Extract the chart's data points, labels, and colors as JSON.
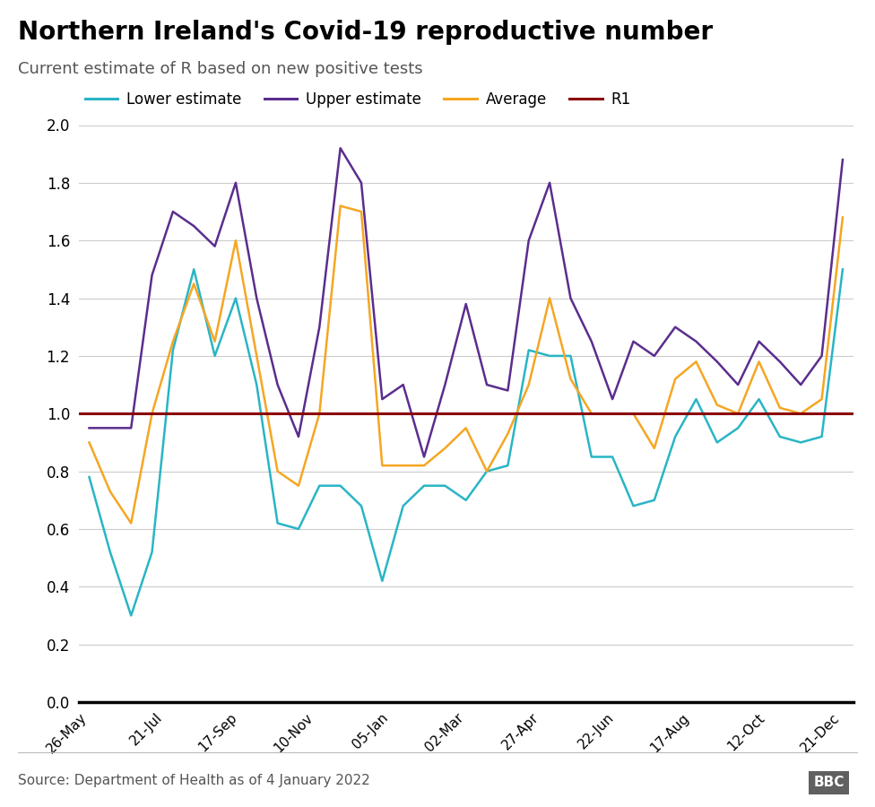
{
  "title": "Northern Ireland's Covid-19 reproductive number",
  "subtitle": "Current estimate of R based on new positive tests",
  "source": "Source: Department of Health as of 4 January 2022",
  "x_labels": [
    "26-May",
    "21-Jul",
    "17-Sep",
    "10-Nov",
    "05-Jan",
    "02-Mar",
    "27-Apr",
    "22-Jun",
    "17-Aug",
    "12-Oct",
    "21-Dec"
  ],
  "lower_color": "#29b5c5",
  "upper_color": "#5b2d8e",
  "average_color": "#f5a623",
  "r1_color": "#8b0000",
  "lower_estimate": [
    0.78,
    0.52,
    0.3,
    0.52,
    1.22,
    1.5,
    1.2,
    1.4,
    1.1,
    0.62,
    0.6,
    0.75,
    0.75,
    0.68,
    0.42,
    0.68,
    0.75,
    0.75,
    0.7,
    0.8,
    0.82,
    1.22,
    1.2,
    1.2,
    0.85,
    0.85,
    0.68,
    0.7,
    0.92,
    1.05,
    0.9,
    0.95,
    1.05,
    0.92,
    0.9,
    0.92,
    1.5
  ],
  "upper_estimate": [
    0.95,
    0.95,
    0.95,
    1.48,
    1.7,
    1.65,
    1.58,
    1.8,
    1.4,
    1.1,
    0.92,
    1.3,
    1.92,
    1.8,
    1.05,
    1.1,
    0.85,
    1.1,
    1.38,
    1.1,
    1.08,
    1.6,
    1.8,
    1.4,
    1.25,
    1.05,
    1.25,
    1.2,
    1.3,
    1.25,
    1.18,
    1.1,
    1.25,
    1.18,
    1.1,
    1.2,
    1.88
  ],
  "average": [
    0.9,
    0.73,
    0.62,
    1.0,
    1.25,
    1.45,
    1.25,
    1.6,
    1.2,
    0.8,
    0.75,
    1.0,
    1.72,
    1.7,
    0.82,
    0.82,
    0.82,
    0.88,
    0.95,
    0.8,
    0.93,
    1.1,
    1.4,
    1.12,
    1.0,
    1.0,
    1.0,
    0.88,
    1.12,
    1.18,
    1.03,
    1.0,
    1.18,
    1.02,
    1.0,
    1.05,
    1.68
  ],
  "ylim": [
    0.0,
    2.0
  ],
  "yticks": [
    0.0,
    0.2,
    0.4,
    0.6,
    0.8,
    1.0,
    1.2,
    1.4,
    1.6,
    1.8,
    2.0
  ],
  "bg_color": "#ffffff",
  "grid_color": "#cccccc"
}
